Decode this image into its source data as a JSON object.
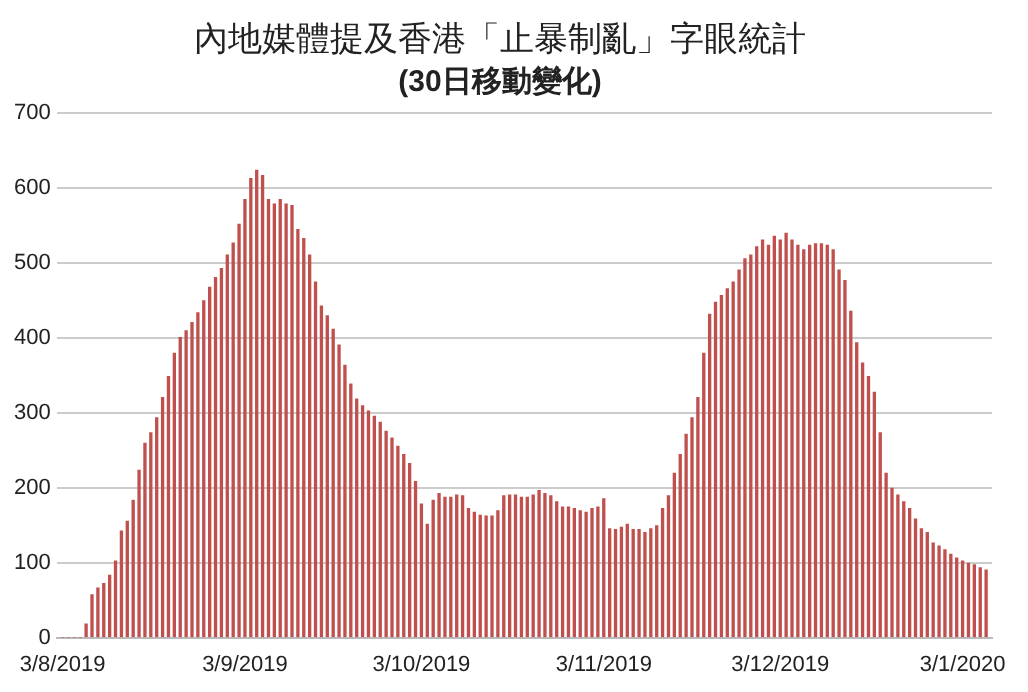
{
  "chart_data": {
    "type": "bar",
    "title": "內地媒體提及香港「止暴制亂」字眼統計",
    "subtitle": "(30日移動變化)",
    "x": [
      "2019-08-03",
      "2019-08-04",
      "2019-08-05",
      "2019-08-06",
      "2019-08-07",
      "2019-08-08",
      "2019-08-09",
      "2019-08-10",
      "2019-08-11",
      "2019-08-12",
      "2019-08-13",
      "2019-08-14",
      "2019-08-15",
      "2019-08-16",
      "2019-08-17",
      "2019-08-18",
      "2019-08-19",
      "2019-08-20",
      "2019-08-21",
      "2019-08-22",
      "2019-08-23",
      "2019-08-24",
      "2019-08-25",
      "2019-08-26",
      "2019-08-27",
      "2019-08-28",
      "2019-08-29",
      "2019-08-30",
      "2019-08-31",
      "2019-09-01",
      "2019-09-02",
      "2019-09-03",
      "2019-09-04",
      "2019-09-05",
      "2019-09-06",
      "2019-09-07",
      "2019-09-08",
      "2019-09-09",
      "2019-09-10",
      "2019-09-11",
      "2019-09-12",
      "2019-09-13",
      "2019-09-14",
      "2019-09-15",
      "2019-09-16",
      "2019-09-17",
      "2019-09-18",
      "2019-09-19",
      "2019-09-20",
      "2019-09-21",
      "2019-09-22",
      "2019-09-23",
      "2019-09-24",
      "2019-09-25",
      "2019-09-26",
      "2019-09-27",
      "2019-09-28",
      "2019-09-29",
      "2019-09-30",
      "2019-10-01",
      "2019-10-02",
      "2019-10-03",
      "2019-10-04",
      "2019-10-05",
      "2019-10-06",
      "2019-10-07",
      "2019-10-08",
      "2019-10-09",
      "2019-10-10",
      "2019-10-11",
      "2019-10-12",
      "2019-10-13",
      "2019-10-14",
      "2019-10-15",
      "2019-10-16",
      "2019-10-17",
      "2019-10-18",
      "2019-10-19",
      "2019-10-20",
      "2019-10-21",
      "2019-10-22",
      "2019-10-23",
      "2019-10-24",
      "2019-10-25",
      "2019-10-26",
      "2019-10-27",
      "2019-10-28",
      "2019-10-29",
      "2019-10-30",
      "2019-10-31",
      "2019-11-01",
      "2019-11-02",
      "2019-11-03",
      "2019-11-04",
      "2019-11-05",
      "2019-11-06",
      "2019-11-07",
      "2019-11-08",
      "2019-11-09",
      "2019-11-10",
      "2019-11-11",
      "2019-11-12",
      "2019-11-13",
      "2019-11-14",
      "2019-11-15",
      "2019-11-16",
      "2019-11-17",
      "2019-11-18",
      "2019-11-19",
      "2019-11-20",
      "2019-11-21",
      "2019-11-22",
      "2019-11-23",
      "2019-11-24",
      "2019-11-25",
      "2019-11-26",
      "2019-11-27",
      "2019-11-28",
      "2019-11-29",
      "2019-11-30",
      "2019-12-01",
      "2019-12-02",
      "2019-12-03",
      "2019-12-04",
      "2019-12-05",
      "2019-12-06",
      "2019-12-07",
      "2019-12-08",
      "2019-12-09",
      "2019-12-10",
      "2019-12-11",
      "2019-12-12",
      "2019-12-13",
      "2019-12-14",
      "2019-12-15",
      "2019-12-16",
      "2019-12-17",
      "2019-12-18",
      "2019-12-19",
      "2019-12-20",
      "2019-12-21",
      "2019-12-22",
      "2019-12-23",
      "2019-12-24",
      "2019-12-25",
      "2019-12-26",
      "2019-12-27",
      "2019-12-28",
      "2019-12-29",
      "2019-12-30",
      "2019-12-31",
      "2020-01-01",
      "2020-01-02",
      "2020-01-03",
      "2020-01-04",
      "2020-01-05",
      "2020-01-06",
      "2020-01-07"
    ],
    "values": [
      0,
      0,
      0,
      0,
      18,
      57,
      66,
      72,
      83,
      102,
      142,
      155,
      183,
      223,
      259,
      273,
      293,
      320,
      348,
      379,
      400,
      409,
      420,
      433,
      449,
      467,
      480,
      492,
      510,
      526,
      551,
      584,
      612,
      623,
      616,
      584,
      578,
      584,
      578,
      576,
      544,
      532,
      510,
      474,
      442,
      429,
      411,
      390,
      363,
      338,
      318,
      309,
      302,
      295,
      287,
      275,
      266,
      255,
      244,
      232,
      208,
      178,
      151,
      183,
      192,
      187,
      187,
      190,
      189,
      172,
      167,
      163,
      162,
      162,
      169,
      189,
      190,
      190,
      187,
      187,
      190,
      196,
      192,
      189,
      181,
      174,
      174,
      172,
      169,
      167,
      172,
      174,
      185,
      145,
      144,
      147,
      151,
      144,
      144,
      140,
      145,
      149,
      172,
      189,
      219,
      244,
      271,
      293,
      320,
      379,
      431,
      447,
      456,
      465,
      474,
      490,
      505,
      510,
      521,
      530,
      523,
      535,
      530,
      539,
      530,
      523,
      517,
      523,
      525,
      525,
      523,
      517,
      490,
      476,
      435,
      393,
      366,
      348,
      327,
      273,
      219,
      199,
      190,
      181,
      172,
      158,
      145,
      140,
      126,
      122,
      117,
      111,
      106,
      102,
      99,
      97,
      93,
      90
    ],
    "color": "#c0504d",
    "xlim": [
      "2019-08-02",
      "2020-01-08"
    ],
    "xticks": [
      {
        "value": "2019-08-03",
        "label": "3/8/2019"
      },
      {
        "value": "2019-09-03",
        "label": "3/9/2019"
      },
      {
        "value": "2019-10-03",
        "label": "3/10/2019"
      },
      {
        "value": "2019-11-03",
        "label": "3/11/2019"
      },
      {
        "value": "2019-12-03",
        "label": "3/12/2019"
      },
      {
        "value": "2020-01-03",
        "label": "3/1/2020"
      }
    ],
    "ylim": [
      0,
      700
    ],
    "yticks": [
      0,
      100,
      200,
      300,
      400,
      500,
      600,
      700
    ],
    "grid": "y",
    "legend": false
  }
}
